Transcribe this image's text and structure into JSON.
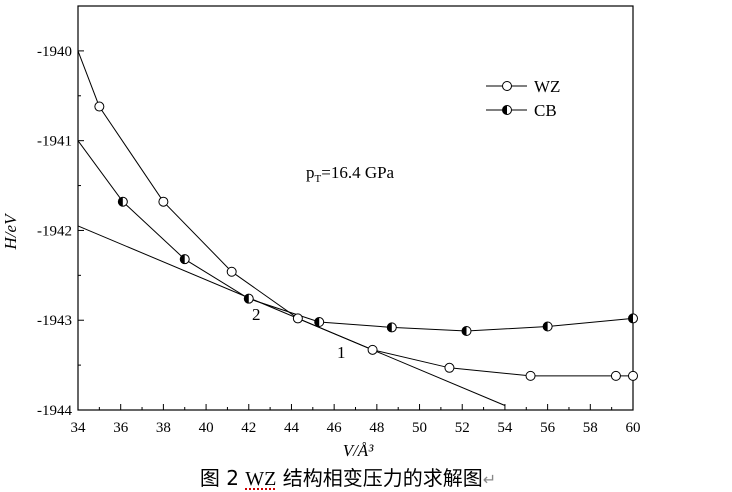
{
  "chart_data": {
    "type": "line",
    "xlabel": "V/Å³",
    "ylabel": "H/eV",
    "xlim": [
      34,
      60
    ],
    "ylim": [
      -1944,
      -1939.5
    ],
    "xticks": [
      34,
      36,
      38,
      40,
      42,
      44,
      46,
      48,
      50,
      52,
      54,
      56,
      58,
      60
    ],
    "yticks": [
      -1940,
      -1941,
      -1942,
      -1943,
      -1944
    ],
    "grid": false,
    "legend_position": "top-right",
    "series": [
      {
        "name": "WZ",
        "marker": "open-circle",
        "color": "#000000",
        "points": [
          [
            34,
            -1940.0
          ],
          [
            35.0,
            -1940.62
          ],
          [
            38.0,
            -1941.68
          ],
          [
            41.2,
            -1942.46
          ],
          [
            44.3,
            -1942.98
          ],
          [
            47.8,
            -1943.33
          ],
          [
            51.4,
            -1943.53
          ],
          [
            55.2,
            -1943.62
          ],
          [
            59.2,
            -1943.62
          ],
          [
            60.0,
            -1943.62
          ]
        ]
      },
      {
        "name": "CB",
        "marker": "half-filled-circle",
        "color": "#000000",
        "points": [
          [
            34,
            -1941.0
          ],
          [
            36.1,
            -1941.68
          ],
          [
            39.0,
            -1942.32
          ],
          [
            42.0,
            -1942.76
          ],
          [
            45.3,
            -1943.02
          ],
          [
            48.7,
            -1943.08
          ],
          [
            52.2,
            -1943.12
          ],
          [
            56.0,
            -1943.07
          ],
          [
            60.0,
            -1942.98
          ]
        ]
      }
    ],
    "tangent_line": {
      "points": [
        [
          34,
          -1941.95
        ],
        [
          54,
          -1943.95
        ]
      ]
    },
    "annotations": {
      "pressure_main": "p",
      "pressure_sub": "T",
      "pressure_value": "=16.4 GPa",
      "tangent_point_1": "1",
      "tangent_point_2": "2"
    }
  },
  "caption": {
    "prefix": "图 2 ",
    "wz": "WZ",
    "suffix": " 结构相变压力的求解图",
    "mark": "↵"
  }
}
